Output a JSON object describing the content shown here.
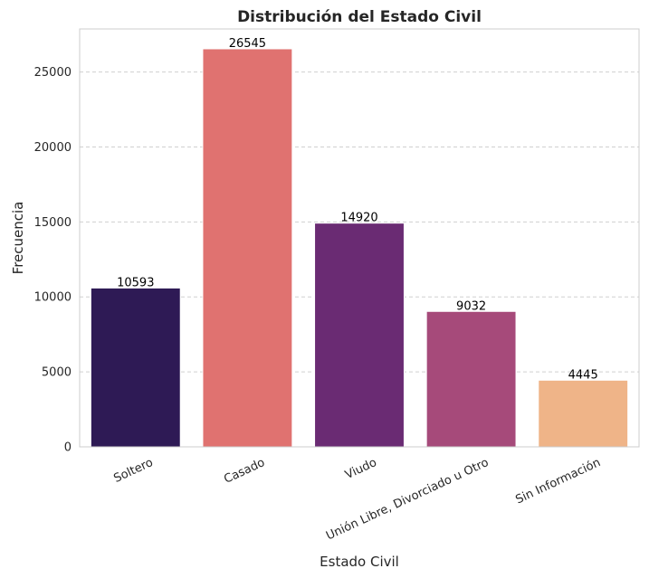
{
  "chart_data": {
    "type": "bar",
    "title": "Distribución del Estado Civil",
    "xlabel": "Estado Civil",
    "ylabel": "Frecuencia",
    "categories": [
      "Soltero",
      "Casado",
      "Viudo",
      "Unión Libre, Divorciado u Otro",
      "Sin Información"
    ],
    "values": [
      10593,
      26545,
      14920,
      9032,
      4445
    ],
    "colors": [
      "#2e1a55",
      "#e07270",
      "#6a2b73",
      "#a64a7a",
      "#efb488"
    ],
    "ylim": [
      0,
      27870
    ],
    "yticks": [
      0,
      5000,
      10000,
      15000,
      20000,
      25000
    ],
    "grid": true,
    "legend": "none"
  }
}
